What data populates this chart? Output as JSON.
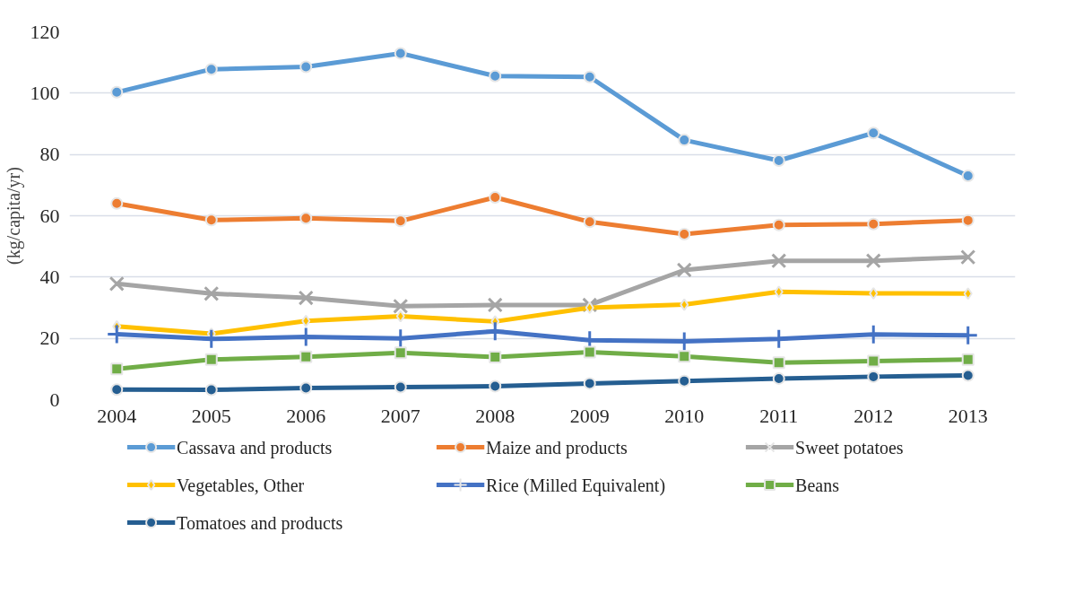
{
  "chart_data": {
    "type": "line",
    "ylabel": "(kg/capita/yr)",
    "categories": [
      "2004",
      "2005",
      "2006",
      "2007",
      "2008",
      "2009",
      "2010",
      "2011",
      "2012",
      "2013"
    ],
    "ylim": [
      0,
      120
    ],
    "yticks": [
      0,
      20,
      40,
      60,
      80,
      100,
      120
    ],
    "grid": "y",
    "legend": "bottom",
    "series": [
      {
        "name": "Cassava and products",
        "color": "#5b9bd5",
        "marker": "circle",
        "values": [
          100.3,
          107.8,
          108.6,
          113,
          105.6,
          105.3,
          84.7,
          78,
          87,
          73
        ]
      },
      {
        "name": "Maize and products",
        "color": "#ed7d31",
        "marker": "circle",
        "values": [
          64,
          58.6,
          59.2,
          58.3,
          66,
          58,
          54,
          57,
          57.3,
          58.5
        ]
      },
      {
        "name": "Sweet potatoes",
        "color": "#a5a5a5",
        "marker": "x",
        "values": [
          37.8,
          34.6,
          33.2,
          30.5,
          30.9,
          30.9,
          42.3,
          45.3,
          45.3,
          46.5
        ]
      },
      {
        "name": "Vegetables, Other",
        "color": "#ffc000",
        "marker": "diamond",
        "values": [
          23.9,
          21.5,
          25.7,
          27.2,
          25.5,
          30,
          31,
          35.2,
          34.7,
          34.6
        ]
      },
      {
        "name": "Rice (Milled Equivalent)",
        "color": "#4472c4",
        "marker": "cross",
        "values": [
          21.4,
          19.8,
          20.5,
          20,
          22.3,
          19.4,
          19,
          19.8,
          21.3,
          21
        ]
      },
      {
        "name": "Beans",
        "color": "#70ad47",
        "marker": "square",
        "values": [
          10,
          13.1,
          14,
          15.3,
          13.9,
          15.5,
          14.1,
          12.1,
          12.6,
          13.1
        ]
      },
      {
        "name": "Tomatoes and products",
        "color": "#255e91",
        "marker": "circle",
        "values": [
          3.3,
          3.2,
          3.8,
          4.1,
          4.4,
          5.3,
          6.1,
          6.9,
          7.5,
          7.9
        ]
      }
    ]
  }
}
